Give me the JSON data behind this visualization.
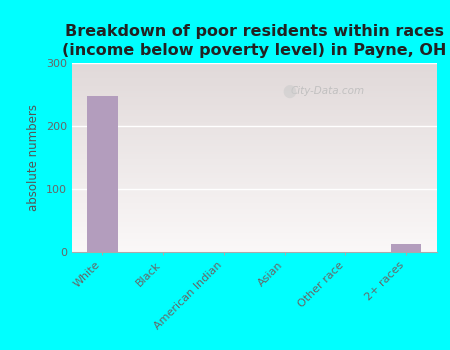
{
  "title": "Breakdown of poor residents within races\n(income below poverty level) in Payne, OH",
  "categories": [
    "White",
    "Black",
    "American Indian",
    "Asian",
    "Other race",
    "2+ races"
  ],
  "values": [
    248,
    0,
    0,
    0,
    0,
    12
  ],
  "bar_color": "#b39dbd",
  "ylabel": "absolute numbers",
  "ylim": [
    0,
    300
  ],
  "yticks": [
    0,
    100,
    200,
    300
  ],
  "bg_top": "#f5f9f0",
  "bg_bottom": "#d4ecc0",
  "outer_bg": "#00ffff",
  "title_fontsize": 11.5,
  "axis_label_fontsize": 8.5,
  "tick_fontsize": 8,
  "watermark": "City-Data.com"
}
